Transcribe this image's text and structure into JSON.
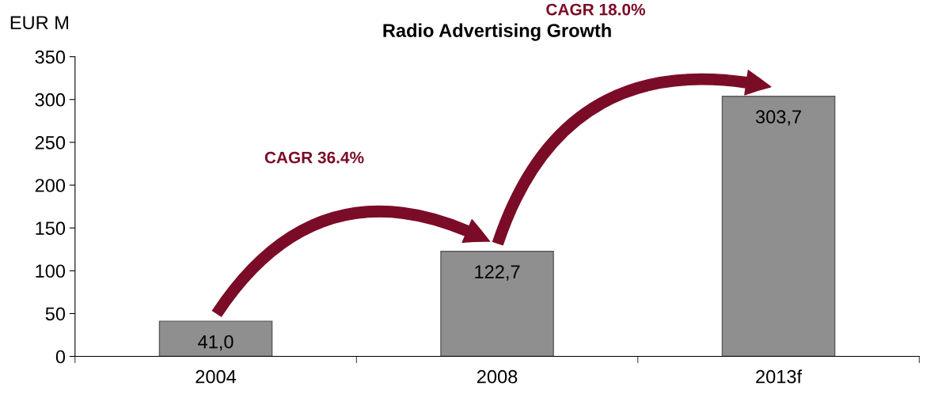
{
  "chart_data": {
    "type": "bar",
    "title": "Radio Advertising Growth",
    "ylabel": "EUR M",
    "categories": [
      "2004",
      "2008",
      "2013f"
    ],
    "values": [
      41.0,
      122.7,
      303.7
    ],
    "value_labels": [
      "41,0",
      "122,7",
      "303,7"
    ],
    "color": "#8f8f8f",
    "ylim": [
      0,
      350
    ],
    "yticks": [
      0,
      50,
      100,
      150,
      200,
      250,
      300,
      350
    ],
    "annotations": [
      "CAGR 36.4%",
      "CAGR 18.0%"
    ],
    "grid": false,
    "legend": false
  }
}
